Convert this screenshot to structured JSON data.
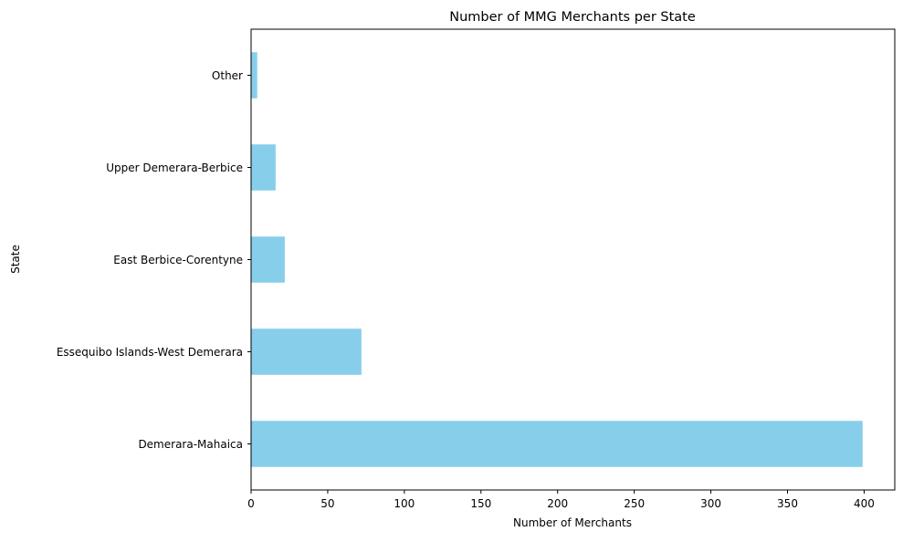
{
  "chart_data": {
    "type": "bar",
    "orientation": "horizontal",
    "title": "Number of MMG Merchants per State",
    "xlabel": "Number of Merchants",
    "ylabel": "State",
    "categories": [
      "Demerara-Mahaica",
      "Essequibo Islands-West Demerara",
      "East Berbice-Corentyne",
      "Upper Demerara-Berbice",
      "Other"
    ],
    "values": [
      399,
      72,
      22,
      16,
      4
    ],
    "xlim": [
      0,
      420
    ],
    "xticks": [
      0,
      50,
      100,
      150,
      200,
      250,
      300,
      350,
      400
    ],
    "grid": false,
    "legend": "none",
    "bar_color": "#87CEEB"
  }
}
